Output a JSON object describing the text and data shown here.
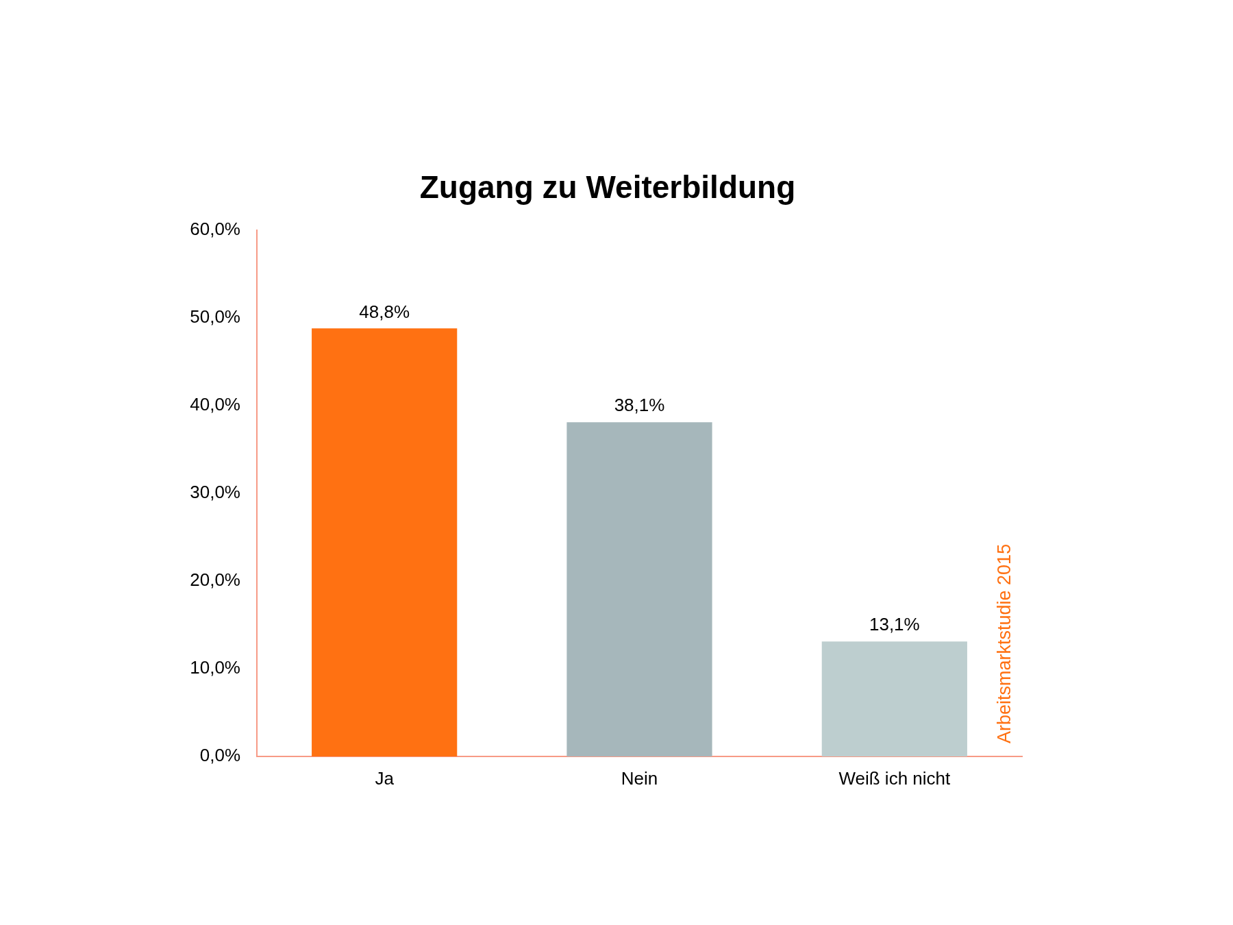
{
  "chart_data": {
    "type": "bar",
    "title": "Zugang zu Weiterbildung",
    "categories": [
      "Ja",
      "Nein",
      "Weiß ich nicht"
    ],
    "values": [
      48.8,
      38.1,
      13.1
    ],
    "colors": [
      "#ff7112",
      "#a6b7bb",
      "#bdcecf"
    ],
    "value_labels": [
      "48,8%",
      "38,1%",
      "13,1%"
    ],
    "ylim": [
      0,
      60
    ],
    "yticks": [
      {
        "value": 0,
        "label": "0,0%"
      },
      {
        "value": 10,
        "label": "10,0%"
      },
      {
        "value": 20,
        "label": "20,0%"
      },
      {
        "value": 30,
        "label": "30,0%"
      },
      {
        "value": 40,
        "label": "40,0%"
      },
      {
        "value": 50,
        "label": "50,0%"
      },
      {
        "value": 60,
        "label": "60,0%"
      }
    ],
    "annotations": [
      "Arbeitsmarktstudie 2015"
    ]
  }
}
